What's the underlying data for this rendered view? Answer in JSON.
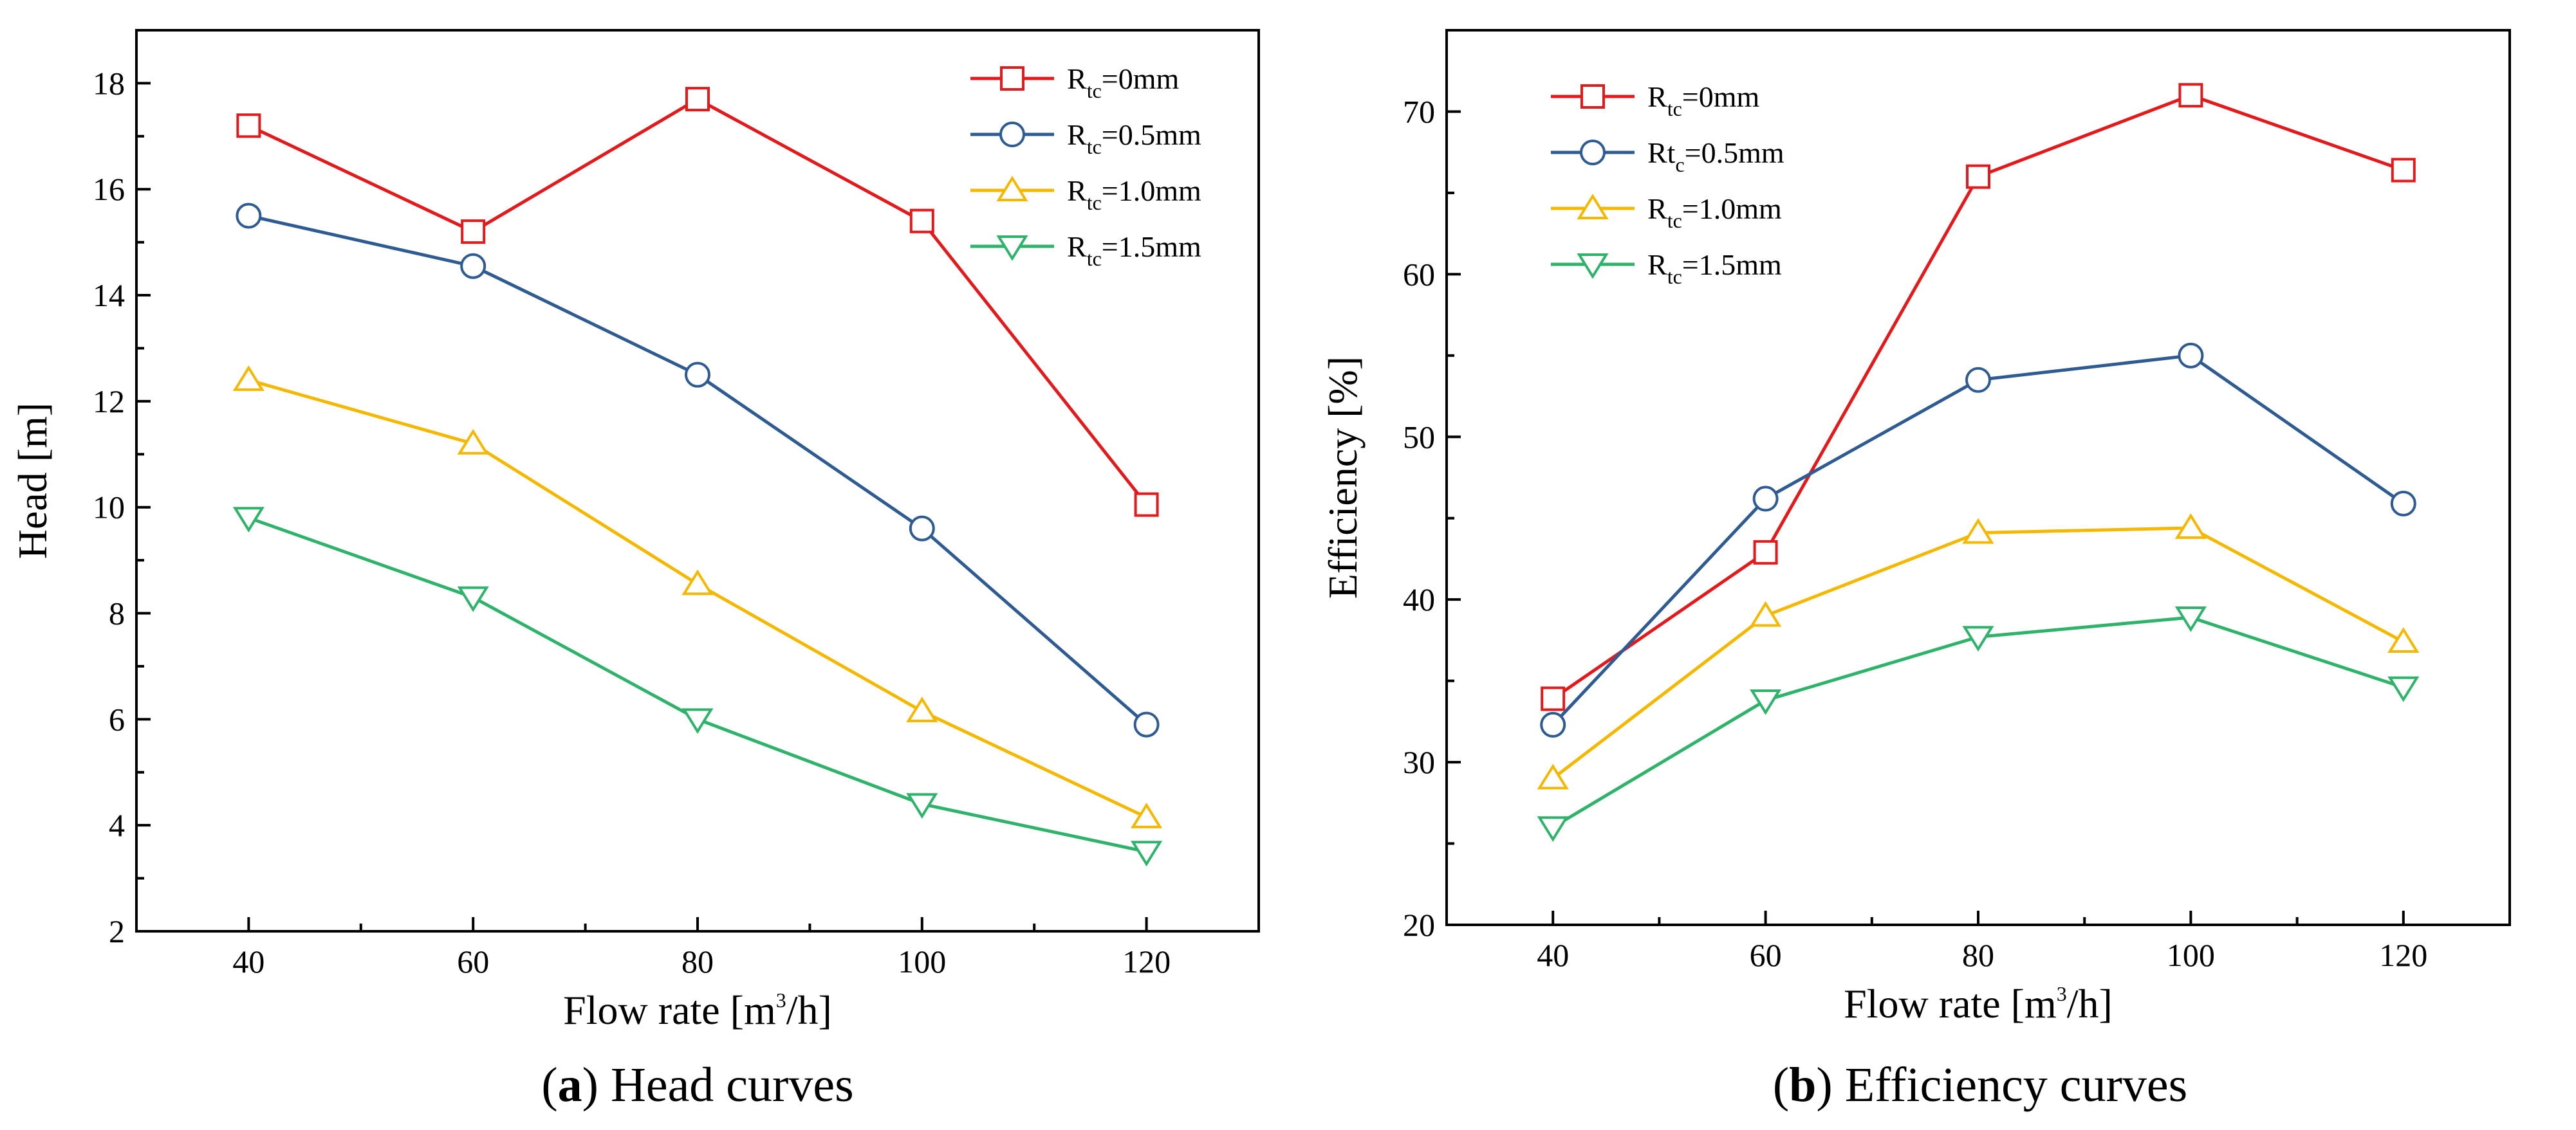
{
  "chart_data": [
    {
      "type": "line",
      "x": [
        40,
        60,
        80,
        100,
        120
      ],
      "xlabel": "Flow rate [m3/h]",
      "ylabel": "Head [m]",
      "xlim": [
        30,
        130
      ],
      "ylim": [
        2,
        19
      ],
      "xticks": [
        40,
        60,
        80,
        100,
        120
      ],
      "yticks": [
        2,
        4,
        6,
        8,
        10,
        12,
        14,
        16,
        18
      ],
      "legend_position": "top-right",
      "caption": {
        "letter": "a",
        "text": "Head curves"
      },
      "series": [
        {
          "name": "Rtc=0mm",
          "color": "#e31a1c",
          "marker": "square",
          "values": [
            17.2,
            15.2,
            17.7,
            15.4,
            10.05
          ]
        },
        {
          "name": "Rtc=0.5mm",
          "color": "#2e5b92",
          "marker": "circle",
          "values": [
            15.5,
            14.55,
            12.5,
            9.6,
            5.9
          ]
        },
        {
          "name": "Rtc=1.0mm",
          "color": "#f5b800",
          "marker": "triangle-up",
          "values": [
            12.4,
            11.2,
            8.55,
            6.15,
            4.15
          ]
        },
        {
          "name": "Rtc=1.5mm",
          "color": "#2fb36b",
          "marker": "triangle-down",
          "values": [
            9.8,
            8.3,
            6.0,
            4.4,
            3.5
          ]
        }
      ]
    },
    {
      "type": "line",
      "x": [
        40,
        60,
        80,
        100,
        120
      ],
      "xlabel": "Flow rate [m3/h]",
      "ylabel": "Efficiency [%]",
      "xlim": [
        30,
        130
      ],
      "ylim": [
        20,
        75
      ],
      "xticks": [
        40,
        60,
        80,
        100,
        120
      ],
      "yticks": [
        20,
        30,
        40,
        50,
        60,
        70
      ],
      "legend_position": "top-left",
      "caption": {
        "letter": "b",
        "text": "Efficiency curves"
      },
      "series": [
        {
          "name": "Rtc=0mm",
          "color": "#e31a1c",
          "marker": "square",
          "values": [
            33.9,
            42.9,
            66.0,
            71.0,
            66.4
          ]
        },
        {
          "name": "Rtc=0.5mm",
          "color": "#2e5b92",
          "marker": "circle",
          "values": [
            32.3,
            46.2,
            53.5,
            55.0,
            45.9
          ]
        },
        {
          "name": "Rtc=1.0mm",
          "color": "#f5b800",
          "marker": "triangle-up",
          "values": [
            29.0,
            39.0,
            44.1,
            44.4,
            37.4
          ]
        },
        {
          "name": "Rtc=1.5mm",
          "color": "#2fb36b",
          "marker": "triangle-down",
          "values": [
            26.0,
            33.8,
            37.7,
            38.9,
            34.6
          ]
        }
      ]
    }
  ],
  "legend_labels": [
    [
      {
        "main": "R",
        "sub": "tc",
        "rest": "=0mm"
      },
      {
        "main": "R",
        "sub": "tc",
        "rest": "=0.5mm"
      },
      {
        "main": "R",
        "sub": "tc",
        "rest": "=1.0mm"
      },
      {
        "main": "R",
        "sub": "tc",
        "rest": "=1.5mm"
      }
    ],
    [
      {
        "main": "R",
        "sub": "tc",
        "rest": "=0mm"
      },
      {
        "main": "Rt",
        "sub": "c",
        "rest": "=0.5mm"
      },
      {
        "main": "R",
        "sub": "tc",
        "rest": "=1.0mm"
      },
      {
        "main": "R",
        "sub": "tc",
        "rest": "=1.5mm"
      }
    ]
  ],
  "xlabel_parts": {
    "before": "Flow rate [m",
    "sup": "3",
    "after": "/h]"
  }
}
